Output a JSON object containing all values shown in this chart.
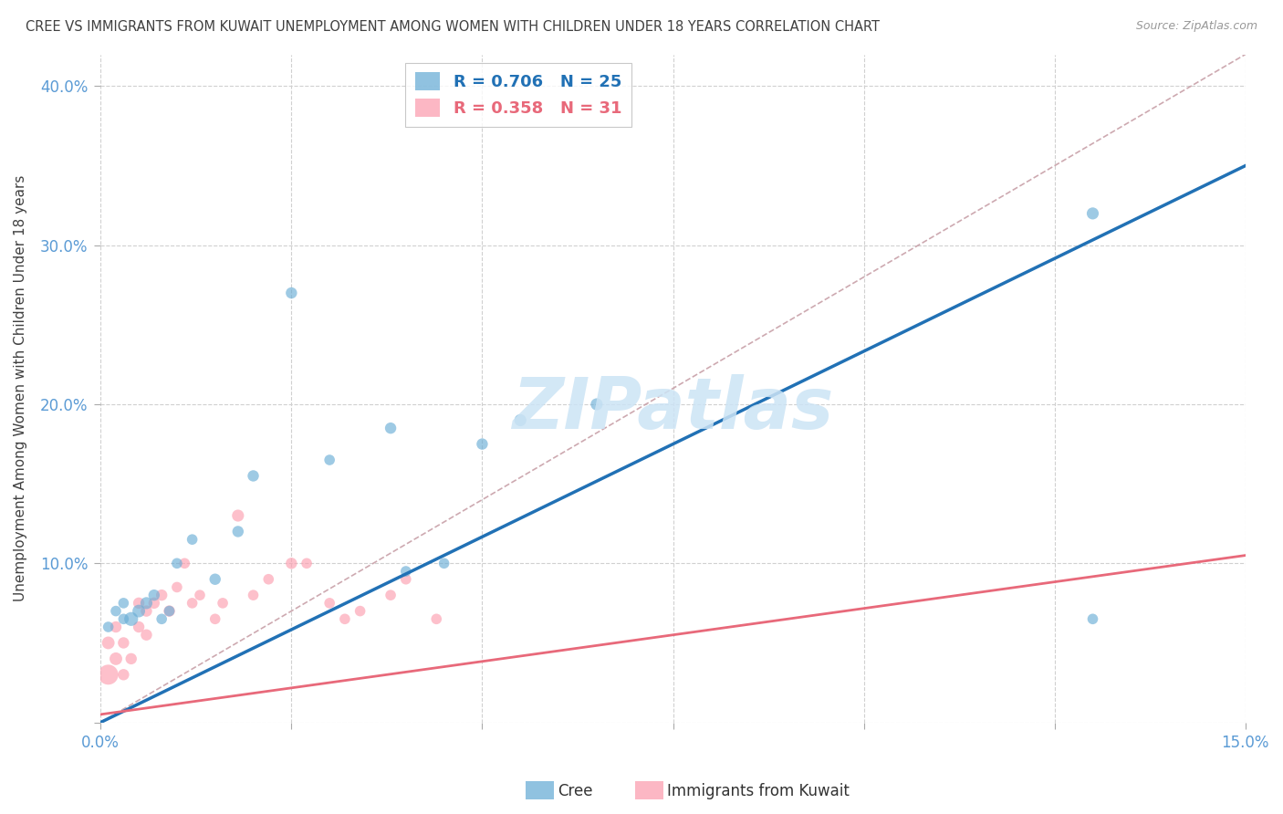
{
  "title": "CREE VS IMMIGRANTS FROM KUWAIT UNEMPLOYMENT AMONG WOMEN WITH CHILDREN UNDER 18 YEARS CORRELATION CHART",
  "source": "Source: ZipAtlas.com",
  "ylabel": "Unemployment Among Women with Children Under 18 years",
  "xlim": [
    0.0,
    0.15
  ],
  "ylim": [
    0.0,
    0.42
  ],
  "xtick_positions": [
    0.0,
    0.025,
    0.05,
    0.075,
    0.1,
    0.125,
    0.15
  ],
  "xticklabels": [
    "0.0%",
    "",
    "",
    "",
    "",
    "",
    "15.0%"
  ],
  "ytick_positions": [
    0.0,
    0.1,
    0.2,
    0.3,
    0.4
  ],
  "yticklabels": [
    "",
    "10.0%",
    "20.0%",
    "30.0%",
    "40.0%"
  ],
  "watermark": "ZIPatlas",
  "cree_scatter_x": [
    0.001,
    0.002,
    0.003,
    0.003,
    0.004,
    0.005,
    0.006,
    0.007,
    0.008,
    0.009,
    0.01,
    0.012,
    0.015,
    0.018,
    0.02,
    0.025,
    0.03,
    0.038,
    0.04,
    0.045,
    0.05,
    0.055,
    0.065,
    0.13,
    0.13
  ],
  "cree_scatter_y": [
    0.06,
    0.07,
    0.065,
    0.075,
    0.065,
    0.07,
    0.075,
    0.08,
    0.065,
    0.07,
    0.1,
    0.115,
    0.09,
    0.12,
    0.155,
    0.27,
    0.165,
    0.185,
    0.095,
    0.1,
    0.175,
    0.19,
    0.2,
    0.32,
    0.065
  ],
  "cree_sizes": [
    70,
    70,
    70,
    70,
    120,
    100,
    90,
    80,
    70,
    70,
    70,
    70,
    80,
    80,
    80,
    80,
    70,
    80,
    70,
    70,
    80,
    90,
    90,
    90,
    70
  ],
  "kuwait_scatter_x": [
    0.001,
    0.001,
    0.002,
    0.002,
    0.003,
    0.003,
    0.004,
    0.005,
    0.005,
    0.006,
    0.006,
    0.007,
    0.008,
    0.009,
    0.01,
    0.011,
    0.012,
    0.013,
    0.015,
    0.016,
    0.018,
    0.02,
    0.022,
    0.025,
    0.027,
    0.03,
    0.032,
    0.034,
    0.038,
    0.04,
    0.044
  ],
  "kuwait_scatter_y": [
    0.03,
    0.05,
    0.04,
    0.06,
    0.03,
    0.05,
    0.04,
    0.06,
    0.075,
    0.055,
    0.07,
    0.075,
    0.08,
    0.07,
    0.085,
    0.1,
    0.075,
    0.08,
    0.065,
    0.075,
    0.13,
    0.08,
    0.09,
    0.1,
    0.1,
    0.075,
    0.065,
    0.07,
    0.08,
    0.09,
    0.065
  ],
  "kuwait_sizes": [
    250,
    100,
    100,
    80,
    80,
    80,
    80,
    80,
    80,
    80,
    80,
    80,
    80,
    80,
    70,
    70,
    70,
    70,
    70,
    70,
    90,
    70,
    70,
    80,
    70,
    70,
    70,
    70,
    70,
    70,
    70
  ],
  "cree_color": "#6baed6",
  "kuwait_color": "#fc9fb0",
  "cree_line_color": "#2171b5",
  "kuwait_line_color": "#e8697a",
  "diag_color": "#c8a0a8",
  "grid_color": "#d0d0d0",
  "title_color": "#404040",
  "axis_label_color": "#5b9bd5",
  "background_color": "#ffffff",
  "cree_line_x": [
    0.0,
    0.15
  ],
  "cree_line_y": [
    0.0,
    0.35
  ],
  "kuwait_line_x": [
    0.0,
    0.15
  ],
  "kuwait_line_y": [
    0.005,
    0.105
  ],
  "diag_line_x": [
    0.0,
    0.15
  ],
  "diag_line_y": [
    0.0,
    0.42
  ]
}
